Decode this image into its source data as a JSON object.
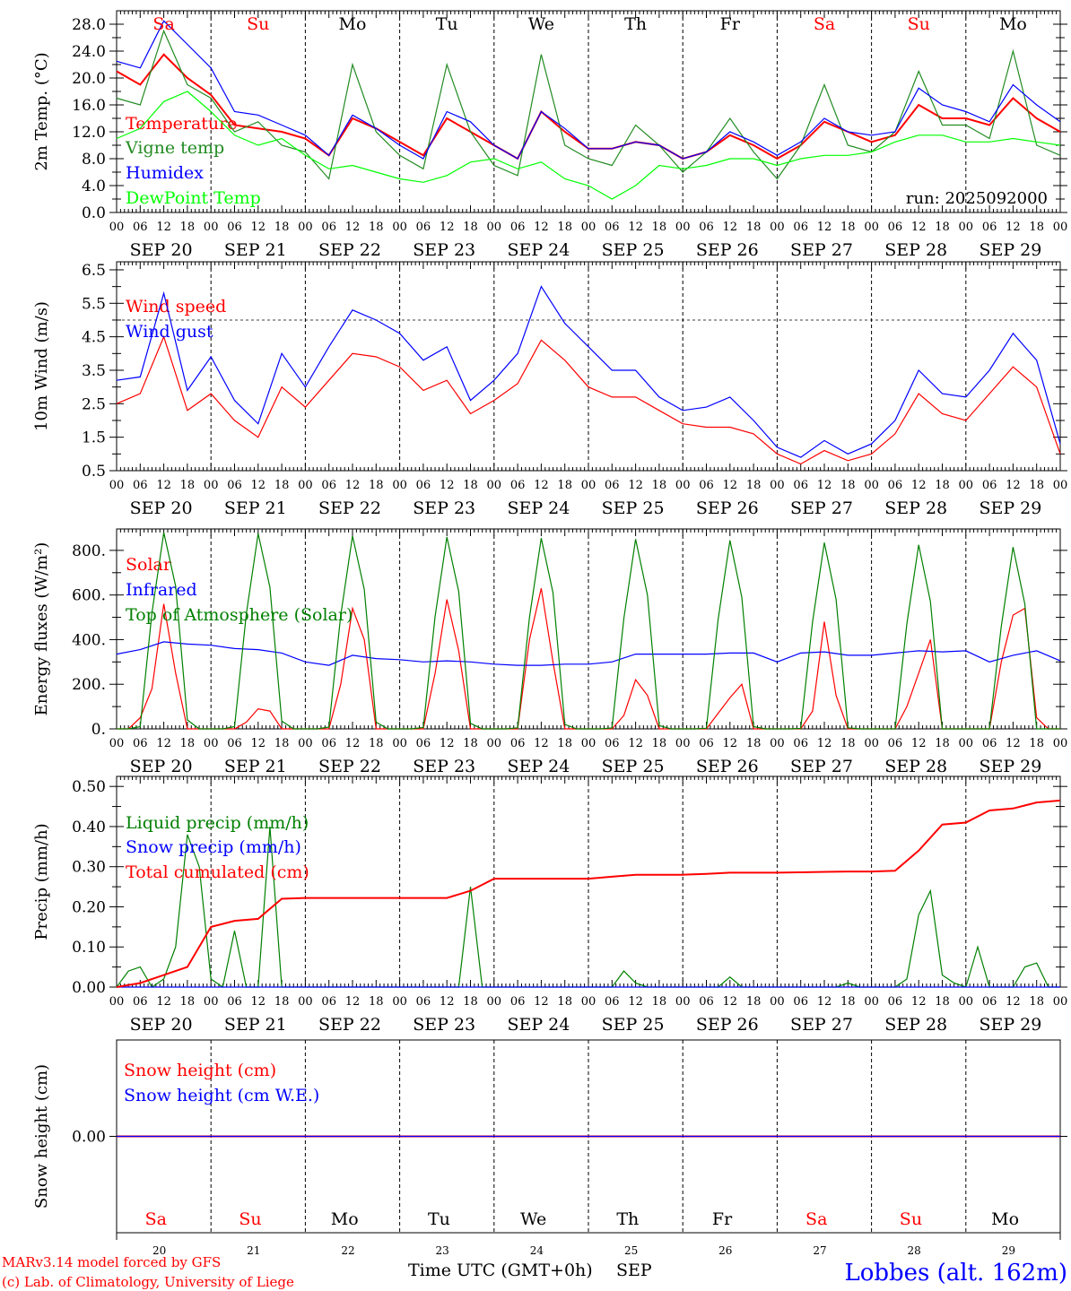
{
  "days": {
    "names": [
      "Sa",
      "Su",
      "Mo",
      "Tu",
      "We",
      "Th",
      "Fr",
      "Sa",
      "Su",
      "Mo"
    ],
    "weekend": [
      true,
      true,
      false,
      false,
      false,
      false,
      false,
      true,
      true,
      false
    ],
    "dates": [
      "SEP 20",
      "SEP 21",
      "SEP 22",
      "SEP 23",
      "SEP 24",
      "SEP 25",
      "SEP 26",
      "SEP 27",
      "SEP 28",
      "SEP 29"
    ],
    "numbers": [
      "20",
      "21",
      "22",
      "23",
      "24",
      "25",
      "26",
      "27",
      "28",
      "29"
    ],
    "hours": [
      "00",
      "06",
      "12",
      "18"
    ]
  },
  "footer": {
    "model": "MARv3.14 model forced by GFS",
    "credit": "(c) Lab. of Climatology, University of Liege",
    "xlabel": "Time UTC (GMT+0h)",
    "month": "SEP",
    "station": "Lobbes (alt. 162m)"
  },
  "colors": {
    "red": "#ff0000",
    "green": "#008000",
    "blue": "#0000ff",
    "lightgreen": "#00ff00",
    "weekend": "#ff0000",
    "weekday": "#000000"
  },
  "chart_data": [
    {
      "type": "line",
      "ylabel": "2m Temp. (°C)",
      "ylim": [
        0,
        30
      ],
      "yticks": [
        "0.0",
        "4.0",
        "8.0",
        "12.0",
        "16.0",
        "20.0",
        "24.0",
        "28.0"
      ],
      "ytick_values": [
        0,
        4,
        8,
        12,
        16,
        20,
        24,
        28
      ],
      "annotation": "run: 2025092000",
      "x_step_hours": 6,
      "series": [
        {
          "name": "Temperature",
          "color": "#ff0000",
          "values": [
            21,
            19,
            23.5,
            20,
            17.5,
            13,
            12.5,
            12,
            11,
            8.5,
            14,
            12.5,
            10.5,
            8.5,
            14,
            12,
            10,
            8,
            15,
            12,
            9.5,
            9.5,
            10.5,
            10,
            8,
            9,
            11.5,
            10,
            8,
            10,
            13.5,
            12,
            10.5,
            11.5,
            16,
            14,
            14,
            13,
            17,
            14,
            12
          ]
        },
        {
          "name": "Vigne temp",
          "color": "#228b22",
          "values": [
            17,
            16,
            27,
            19,
            17,
            12,
            13.5,
            10,
            9,
            5,
            22,
            12,
            8.5,
            6.5,
            22,
            12,
            7,
            5.5,
            23.5,
            10,
            8,
            7,
            13,
            10,
            6,
            9,
            14,
            9,
            5,
            10,
            19,
            10,
            9,
            12,
            21,
            13,
            13,
            11,
            24,
            10,
            8.5
          ]
        },
        {
          "name": "Humidex",
          "color": "#0000ff",
          "values": [
            22.5,
            21.5,
            28.5,
            25,
            21.5,
            15,
            14.5,
            13,
            11.5,
            8.5,
            14.5,
            12.5,
            10,
            8,
            15,
            13.5,
            10,
            8,
            15,
            12.5,
            9.5,
            9.5,
            10.5,
            10,
            8,
            9,
            12,
            10.5,
            8.5,
            10.5,
            14,
            12,
            11.5,
            12,
            18.5,
            16,
            15,
            13.5,
            19,
            16,
            13.5
          ]
        },
        {
          "name": "DewPoint Temp",
          "color": "#00ff00",
          "values": [
            11,
            12.5,
            16.5,
            18,
            15,
            11.5,
            10,
            11,
            8.5,
            6.5,
            7,
            6,
            5,
            4.5,
            5.5,
            7.5,
            8,
            6.5,
            7.5,
            5,
            4,
            2,
            4,
            7,
            6.5,
            7,
            8,
            8,
            7,
            8,
            8.5,
            8.5,
            9,
            10.5,
            11.5,
            11.5,
            10.5,
            10.5,
            11,
            10.5,
            10
          ]
        }
      ]
    },
    {
      "type": "line",
      "ylabel": "10m Wind (m/s)",
      "ylim": [
        0.5,
        6.74
      ],
      "yticks": [
        "0.5",
        "1.5",
        "2.5",
        "3.5",
        "4.5",
        "5.5",
        "6.5"
      ],
      "ytick_values": [
        0.5,
        1.5,
        2.5,
        3.5,
        4.5,
        5.5,
        6.5
      ],
      "reference_line": 5.0,
      "x_step_hours": 6,
      "series": [
        {
          "name": "Wind speed",
          "color": "#ff0000",
          "values": [
            2.5,
            2.8,
            4.5,
            2.3,
            2.8,
            2.0,
            1.5,
            3.0,
            2.4,
            3.2,
            4.0,
            3.9,
            3.6,
            2.9,
            3.2,
            2.2,
            2.6,
            3.1,
            4.4,
            3.8,
            3.0,
            2.7,
            2.7,
            2.3,
            1.9,
            1.8,
            1.8,
            1.6,
            1.0,
            0.7,
            1.1,
            0.8,
            1.0,
            1.6,
            2.8,
            2.2,
            2.0,
            2.8,
            3.6,
            3.0,
            1.0
          ]
        },
        {
          "name": "Wind gust",
          "color": "#0000ff",
          "values": [
            3.2,
            3.3,
            5.8,
            2.9,
            3.9,
            2.6,
            1.9,
            4.0,
            3.0,
            4.2,
            5.3,
            5.0,
            4.6,
            3.8,
            4.2,
            2.6,
            3.2,
            4.0,
            6.0,
            4.9,
            4.2,
            3.5,
            3.5,
            2.7,
            2.3,
            2.4,
            2.7,
            2.0,
            1.2,
            0.9,
            1.4,
            1.0,
            1.3,
            2.0,
            3.5,
            2.8,
            2.7,
            3.5,
            4.6,
            3.8,
            1.3
          ]
        }
      ]
    },
    {
      "type": "line",
      "ylabel": "Energy fluxes (W/m²)",
      "ylim": [
        0,
        896
      ],
      "yticks": [
        "0.",
        "200.",
        "400.",
        "600.",
        "800."
      ],
      "ytick_values": [
        0,
        200,
        400,
        600,
        800
      ],
      "series": [
        {
          "name": "Solar",
          "color": "#ff0000",
          "x_step_hours": 3,
          "values": [
            0,
            0,
            50,
            180,
            560,
            250,
            0,
            0,
            0,
            0,
            0,
            30,
            90,
            80,
            0,
            0,
            0,
            0,
            0,
            200,
            540,
            400,
            0,
            0,
            0,
            0,
            0,
            250,
            580,
            350,
            0,
            0,
            0,
            0,
            0,
            400,
            630,
            300,
            0,
            0,
            0,
            0,
            0,
            60,
            220,
            150,
            0,
            0,
            0,
            0,
            0,
            70,
            140,
            200,
            0,
            0,
            0,
            0,
            0,
            80,
            480,
            150,
            0,
            0,
            0,
            0,
            0,
            100,
            250,
            400,
            0,
            0,
            0,
            0,
            0,
            300,
            510,
            540,
            50,
            0,
            0
          ]
        },
        {
          "name": "Infrared",
          "color": "#0000ff",
          "x_step_hours": 6,
          "values": [
            335,
            355,
            390,
            380,
            375,
            360,
            355,
            340,
            300,
            285,
            330,
            315,
            310,
            300,
            305,
            300,
            290,
            285,
            285,
            290,
            290,
            300,
            335,
            335,
            335,
            335,
            340,
            340,
            300,
            340,
            345,
            330,
            330,
            340,
            350,
            345,
            350,
            300,
            330,
            350,
            305
          ]
        },
        {
          "name": "Top of Atmosphere (Solar)",
          "color": "#008000",
          "x_step_hours": 3,
          "values": [
            0,
            0,
            10,
            520,
            880,
            640,
            40,
            0,
            0,
            0,
            10,
            515,
            875,
            635,
            35,
            0,
            0,
            0,
            8,
            510,
            865,
            625,
            30,
            0,
            0,
            0,
            6,
            505,
            860,
            615,
            25,
            0,
            0,
            0,
            5,
            500,
            855,
            610,
            20,
            0,
            0,
            0,
            4,
            495,
            850,
            600,
            15,
            0,
            0,
            0,
            3,
            490,
            845,
            590,
            10,
            0,
            0,
            0,
            2,
            480,
            835,
            580,
            5,
            0,
            0,
            0,
            0,
            470,
            825,
            570,
            0,
            0,
            0,
            0,
            0,
            460,
            815,
            560,
            0,
            0,
            0
          ]
        }
      ]
    },
    {
      "type": "line",
      "ylabel": "Precip (mm/h)",
      "ylim": [
        0,
        0.525
      ],
      "yticks": [
        "0.00",
        "0.10",
        "0.20",
        "0.30",
        "0.40",
        "0.50"
      ],
      "ytick_values": [
        0,
        0.1,
        0.2,
        0.3,
        0.4,
        0.5
      ],
      "series": [
        {
          "name": "Liquid precip (mm/h)",
          "color": "#008000",
          "x_step_hours": 3,
          "values": [
            0,
            0.04,
            0.05,
            0,
            0.02,
            0.1,
            0.38,
            0.3,
            0.02,
            0,
            0.14,
            0,
            0,
            0.4,
            0,
            0,
            0,
            0,
            0,
            0,
            0,
            0,
            0,
            0,
            0,
            0,
            0,
            0,
            0,
            0,
            0.25,
            0,
            0,
            0,
            0,
            0,
            0,
            0,
            0,
            0,
            0,
            0,
            0,
            0.04,
            0.01,
            0,
            0,
            0,
            0,
            0,
            0,
            0,
            0.025,
            0,
            0,
            0,
            0,
            0,
            0,
            0,
            0,
            0,
            0.01,
            0,
            0,
            0,
            0,
            0.02,
            0.18,
            0.24,
            0.03,
            0.01,
            0,
            0.1,
            0,
            0,
            0,
            0.05,
            0.06,
            0,
            0
          ]
        },
        {
          "name": "Snow precip (mm/h)",
          "color": "#0000ff",
          "x_step_hours": 6,
          "values": [
            0,
            0,
            0,
            0,
            0,
            0,
            0,
            0,
            0,
            0,
            0,
            0,
            0,
            0,
            0,
            0,
            0,
            0,
            0,
            0,
            0,
            0,
            0,
            0,
            0,
            0,
            0,
            0,
            0,
            0,
            0,
            0,
            0,
            0,
            0,
            0,
            0,
            0,
            0,
            0,
            0
          ]
        },
        {
          "name": "Total cumulated (cm)",
          "color": "#ff0000",
          "x_step_hours": 6,
          "values": [
            0,
            0.01,
            0.03,
            0.05,
            0.15,
            0.165,
            0.17,
            0.22,
            0.222,
            0.222,
            0.222,
            0.222,
            0.222,
            0.222,
            0.222,
            0.24,
            0.27,
            0.27,
            0.27,
            0.27,
            0.27,
            0.275,
            0.28,
            0.28,
            0.28,
            0.282,
            0.285,
            0.285,
            0.285,
            0.286,
            0.287,
            0.288,
            0.288,
            0.29,
            0.34,
            0.405,
            0.41,
            0.44,
            0.445,
            0.46,
            0.465
          ]
        }
      ]
    },
    {
      "type": "line",
      "ylabel": "Snow height (cm)",
      "ylim": [
        -1,
        1
      ],
      "yticks": [
        "0.00"
      ],
      "ytick_values": [
        0
      ],
      "x_step_hours": 24,
      "series": [
        {
          "name": "Snow height (cm)",
          "color": "#ff0000",
          "values": [
            0,
            0,
            0,
            0,
            0,
            0,
            0,
            0,
            0,
            0,
            0
          ]
        },
        {
          "name": "Snow height (cm W.E.)",
          "color": "#0000ff",
          "values": [
            0,
            0,
            0,
            0,
            0,
            0,
            0,
            0,
            0,
            0,
            0
          ]
        }
      ]
    }
  ]
}
